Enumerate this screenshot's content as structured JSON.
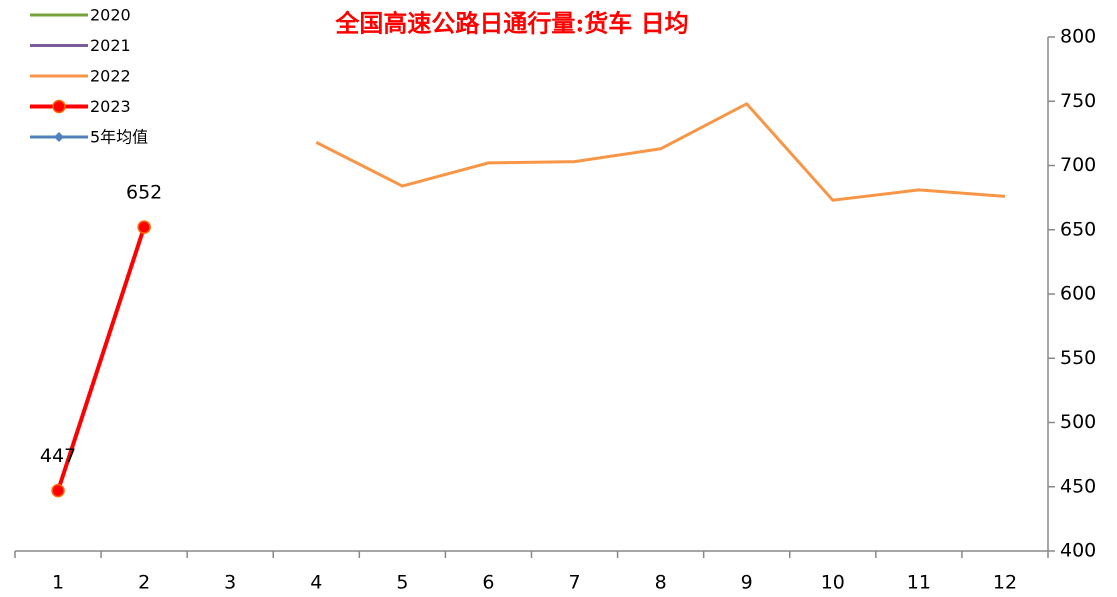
{
  "chart_data": {
    "type": "line",
    "title": "全国高速公路日通行量:货车 日均",
    "categories": [
      "1",
      "2",
      "3",
      "4",
      "5",
      "6",
      "7",
      "8",
      "9",
      "10",
      "11",
      "12"
    ],
    "series": [
      {
        "name": "2020",
        "color": "#77a33b",
        "marker": "none",
        "values": [
          null,
          null,
          null,
          null,
          null,
          null,
          null,
          null,
          null,
          null,
          null,
          null
        ]
      },
      {
        "name": "2021",
        "color": "#7a5c9b",
        "marker": "none",
        "values": [
          null,
          null,
          null,
          null,
          null,
          null,
          null,
          null,
          null,
          null,
          null,
          null
        ]
      },
      {
        "name": "2022",
        "color": "#f79646",
        "marker": "none",
        "values": [
          null,
          null,
          null,
          718,
          684,
          702,
          703,
          713,
          748,
          673,
          681,
          676
        ]
      },
      {
        "name": "2023",
        "color": "#ff0000",
        "marker": "circle",
        "data_labels": true,
        "values": [
          447,
          652,
          null,
          null,
          null,
          null,
          null,
          null,
          null,
          null,
          null,
          null
        ]
      },
      {
        "name": "5年均值",
        "color": "#4f81bd",
        "marker": "diamond",
        "values": [
          null,
          null,
          null,
          null,
          null,
          null,
          null,
          null,
          null,
          null,
          null,
          null
        ]
      }
    ],
    "ylim": [
      400,
      800
    ],
    "yticks": [
      400,
      450,
      500,
      550,
      600,
      650,
      700,
      750,
      800
    ],
    "y_axis_side": "right",
    "legend": "top-left",
    "grid": false
  }
}
